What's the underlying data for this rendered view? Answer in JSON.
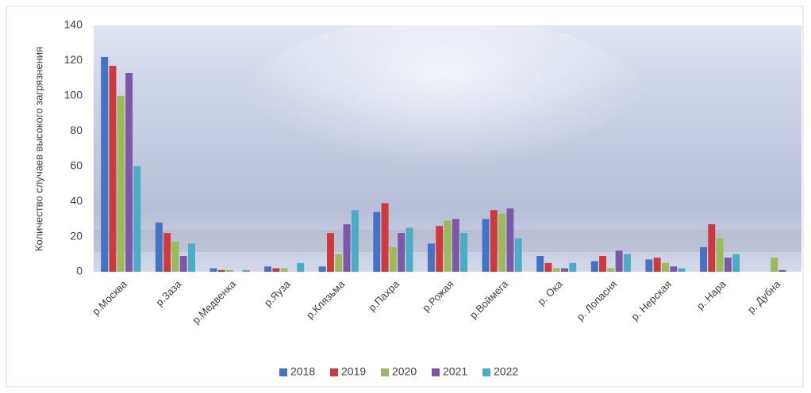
{
  "chart_data": {
    "type": "bar",
    "y_label": "Количество случаев высокого загрязнения",
    "categories": [
      "р.Москва",
      "р.Заза",
      "р.Медвенка",
      "р.Яуза",
      "р.Клязьма",
      "р.Пахра",
      "р.Рожая",
      "р.Воймега",
      "р. Ока",
      "р. Лопасня",
      "р. Нерская",
      "р. Нара",
      "р. Дубна"
    ],
    "series": [
      {
        "name": "2018",
        "color": "#4472c4",
        "values": [
          122,
          28,
          2,
          3,
          3,
          34,
          16,
          30,
          9,
          6,
          7,
          14,
          0
        ]
      },
      {
        "name": "2019",
        "color": "#d0393b",
        "values": [
          117,
          22,
          1,
          2,
          22,
          39,
          26,
          35,
          5,
          9,
          8,
          27,
          0
        ]
      },
      {
        "name": "2020",
        "color": "#9bbb59",
        "values": [
          100,
          17,
          1,
          2,
          10,
          14,
          29,
          33,
          2,
          2,
          5,
          19,
          8
        ]
      },
      {
        "name": "2021",
        "color": "#7e57a6",
        "values": [
          113,
          9,
          0,
          0,
          27,
          22,
          30,
          36,
          2,
          12,
          3,
          8,
          1
        ]
      },
      {
        "name": "2022",
        "color": "#4bacc6",
        "values": [
          60,
          16,
          1,
          5,
          35,
          25,
          22,
          19,
          5,
          10,
          2,
          10,
          0
        ]
      }
    ],
    "ylim": [
      0,
      140
    ],
    "yticks": [
      0,
      20,
      40,
      60,
      80,
      100,
      120,
      140
    ],
    "grid": false,
    "legend": "bottom"
  }
}
